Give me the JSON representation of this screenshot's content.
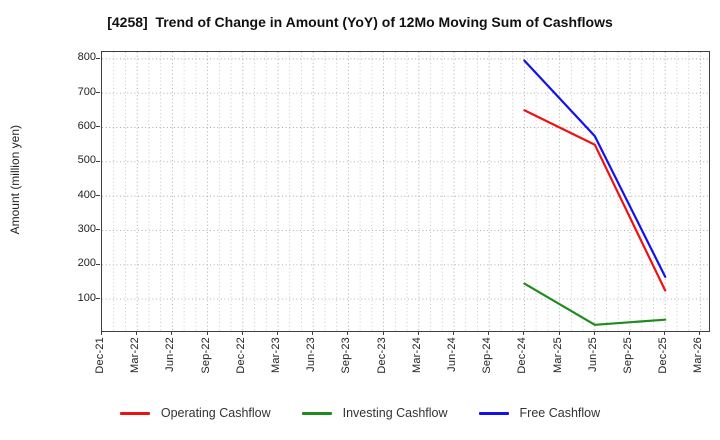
{
  "title": "[4258]  Trend of Change in Amount (YoY) of 12Mo Moving Sum of Cashflows",
  "ylabel": "Amount (million yen)",
  "chart_data": {
    "type": "line",
    "title": "[4258]  Trend of Change in Amount (YoY) of 12Mo Moving Sum of Cashflows",
    "xlabel": "",
    "ylabel": "Amount (million yen)",
    "x_ticklabels": [
      "Dec-21",
      "Mar-22",
      "Jun-22",
      "Sep-22",
      "Dec-22",
      "Mar-23",
      "Jun-23",
      "Sep-23",
      "Dec-23",
      "Mar-24",
      "Jun-24",
      "Sep-24",
      "Dec-24",
      "Mar-25",
      "Jun-25",
      "Sep-25",
      "Dec-25",
      "Mar-26"
    ],
    "y_ticks": [
      100,
      200,
      300,
      400,
      500,
      600,
      700,
      800
    ],
    "ylim": [
      7,
      820
    ],
    "grid": "dotted gray; horizontal at each 100, vertical monthly minor + quarterly major",
    "legend_position": "bottom-center",
    "series": [
      {
        "name": "Operating Cashflow",
        "color": "#ee1111",
        "points": [
          [
            "Dec-24",
            650
          ],
          [
            "Jun-25",
            550
          ],
          [
            "Dec-25",
            125
          ]
        ]
      },
      {
        "name": "Investing Cashflow",
        "color": "#1f8b1f",
        "points": [
          [
            "Dec-24",
            145
          ],
          [
            "Jun-25",
            25
          ],
          [
            "Dec-25",
            40
          ]
        ]
      },
      {
        "name": "Free Cashflow",
        "color": "#1212ee",
        "points": [
          [
            "Dec-24",
            795
          ],
          [
            "Jun-25",
            575
          ],
          [
            "Dec-25",
            165
          ]
        ]
      }
    ]
  },
  "colors": {
    "background": "#ffffff",
    "spine": "#3f3f3f",
    "grid_major": "#a6a6a6",
    "grid_minor": "#c3c3c3",
    "title_text": "#111111",
    "tick_text": "#222222",
    "legend_text": "#333333"
  }
}
